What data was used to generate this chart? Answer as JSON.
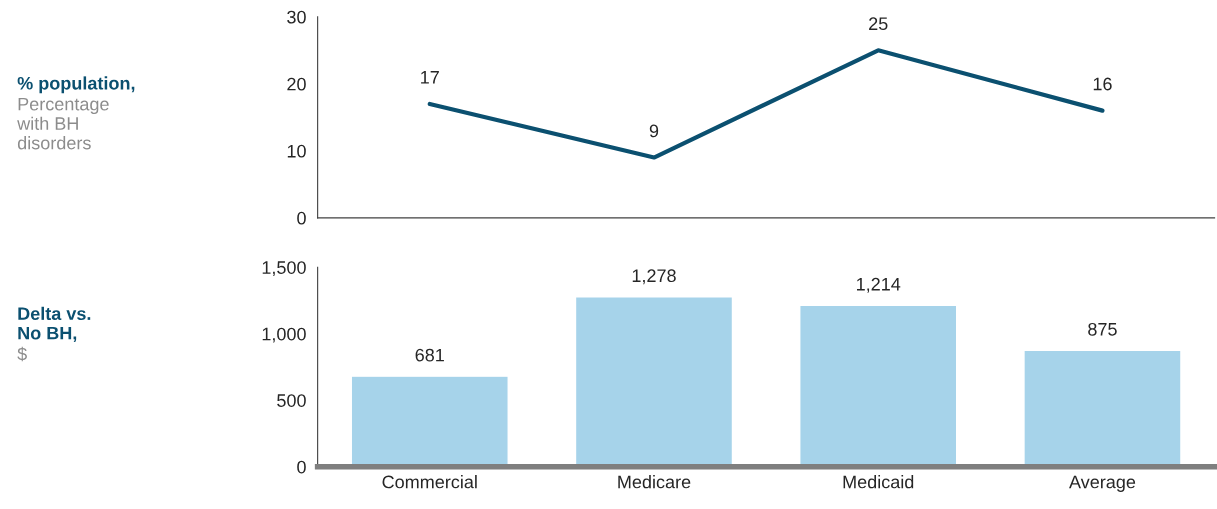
{
  "chart_data": [
    {
      "type": "line",
      "ylabel": "% population,",
      "annotations": [
        "Percentage\nwith BH\ndisorders"
      ],
      "categories": [
        null,
        null,
        null,
        null
      ],
      "series": [
        {
          "color": "#0b5070",
          "values": [
            17,
            9,
            25,
            16
          ]
        }
      ],
      "ylim": [
        0,
        30
      ],
      "yticks": [
        0,
        10,
        20,
        30
      ],
      "data_labels": true,
      "tick_labels": "y",
      "grid": false,
      "marker": "none"
    },
    {
      "type": "bar",
      "ylabel": "Delta vs.\nNo BH,",
      "annotations": [
        "$"
      ],
      "categories": [
        "Commercial",
        "Medicare",
        "Medicaid",
        "Average"
      ],
      "series": [
        {
          "color": "#a6d3ea",
          "values": [
            681,
            1278,
            1214,
            875
          ],
          "value_labels": [
            "681",
            "1,278",
            "1,214",
            "875"
          ]
        }
      ],
      "ylim": [
        0,
        1500
      ],
      "yticks": [
        0,
        500,
        {
          "value": 1000,
          "label": "1,000"
        },
        {
          "value": 1500,
          "label": "1,500"
        }
      ],
      "grid": false
    }
  ]
}
